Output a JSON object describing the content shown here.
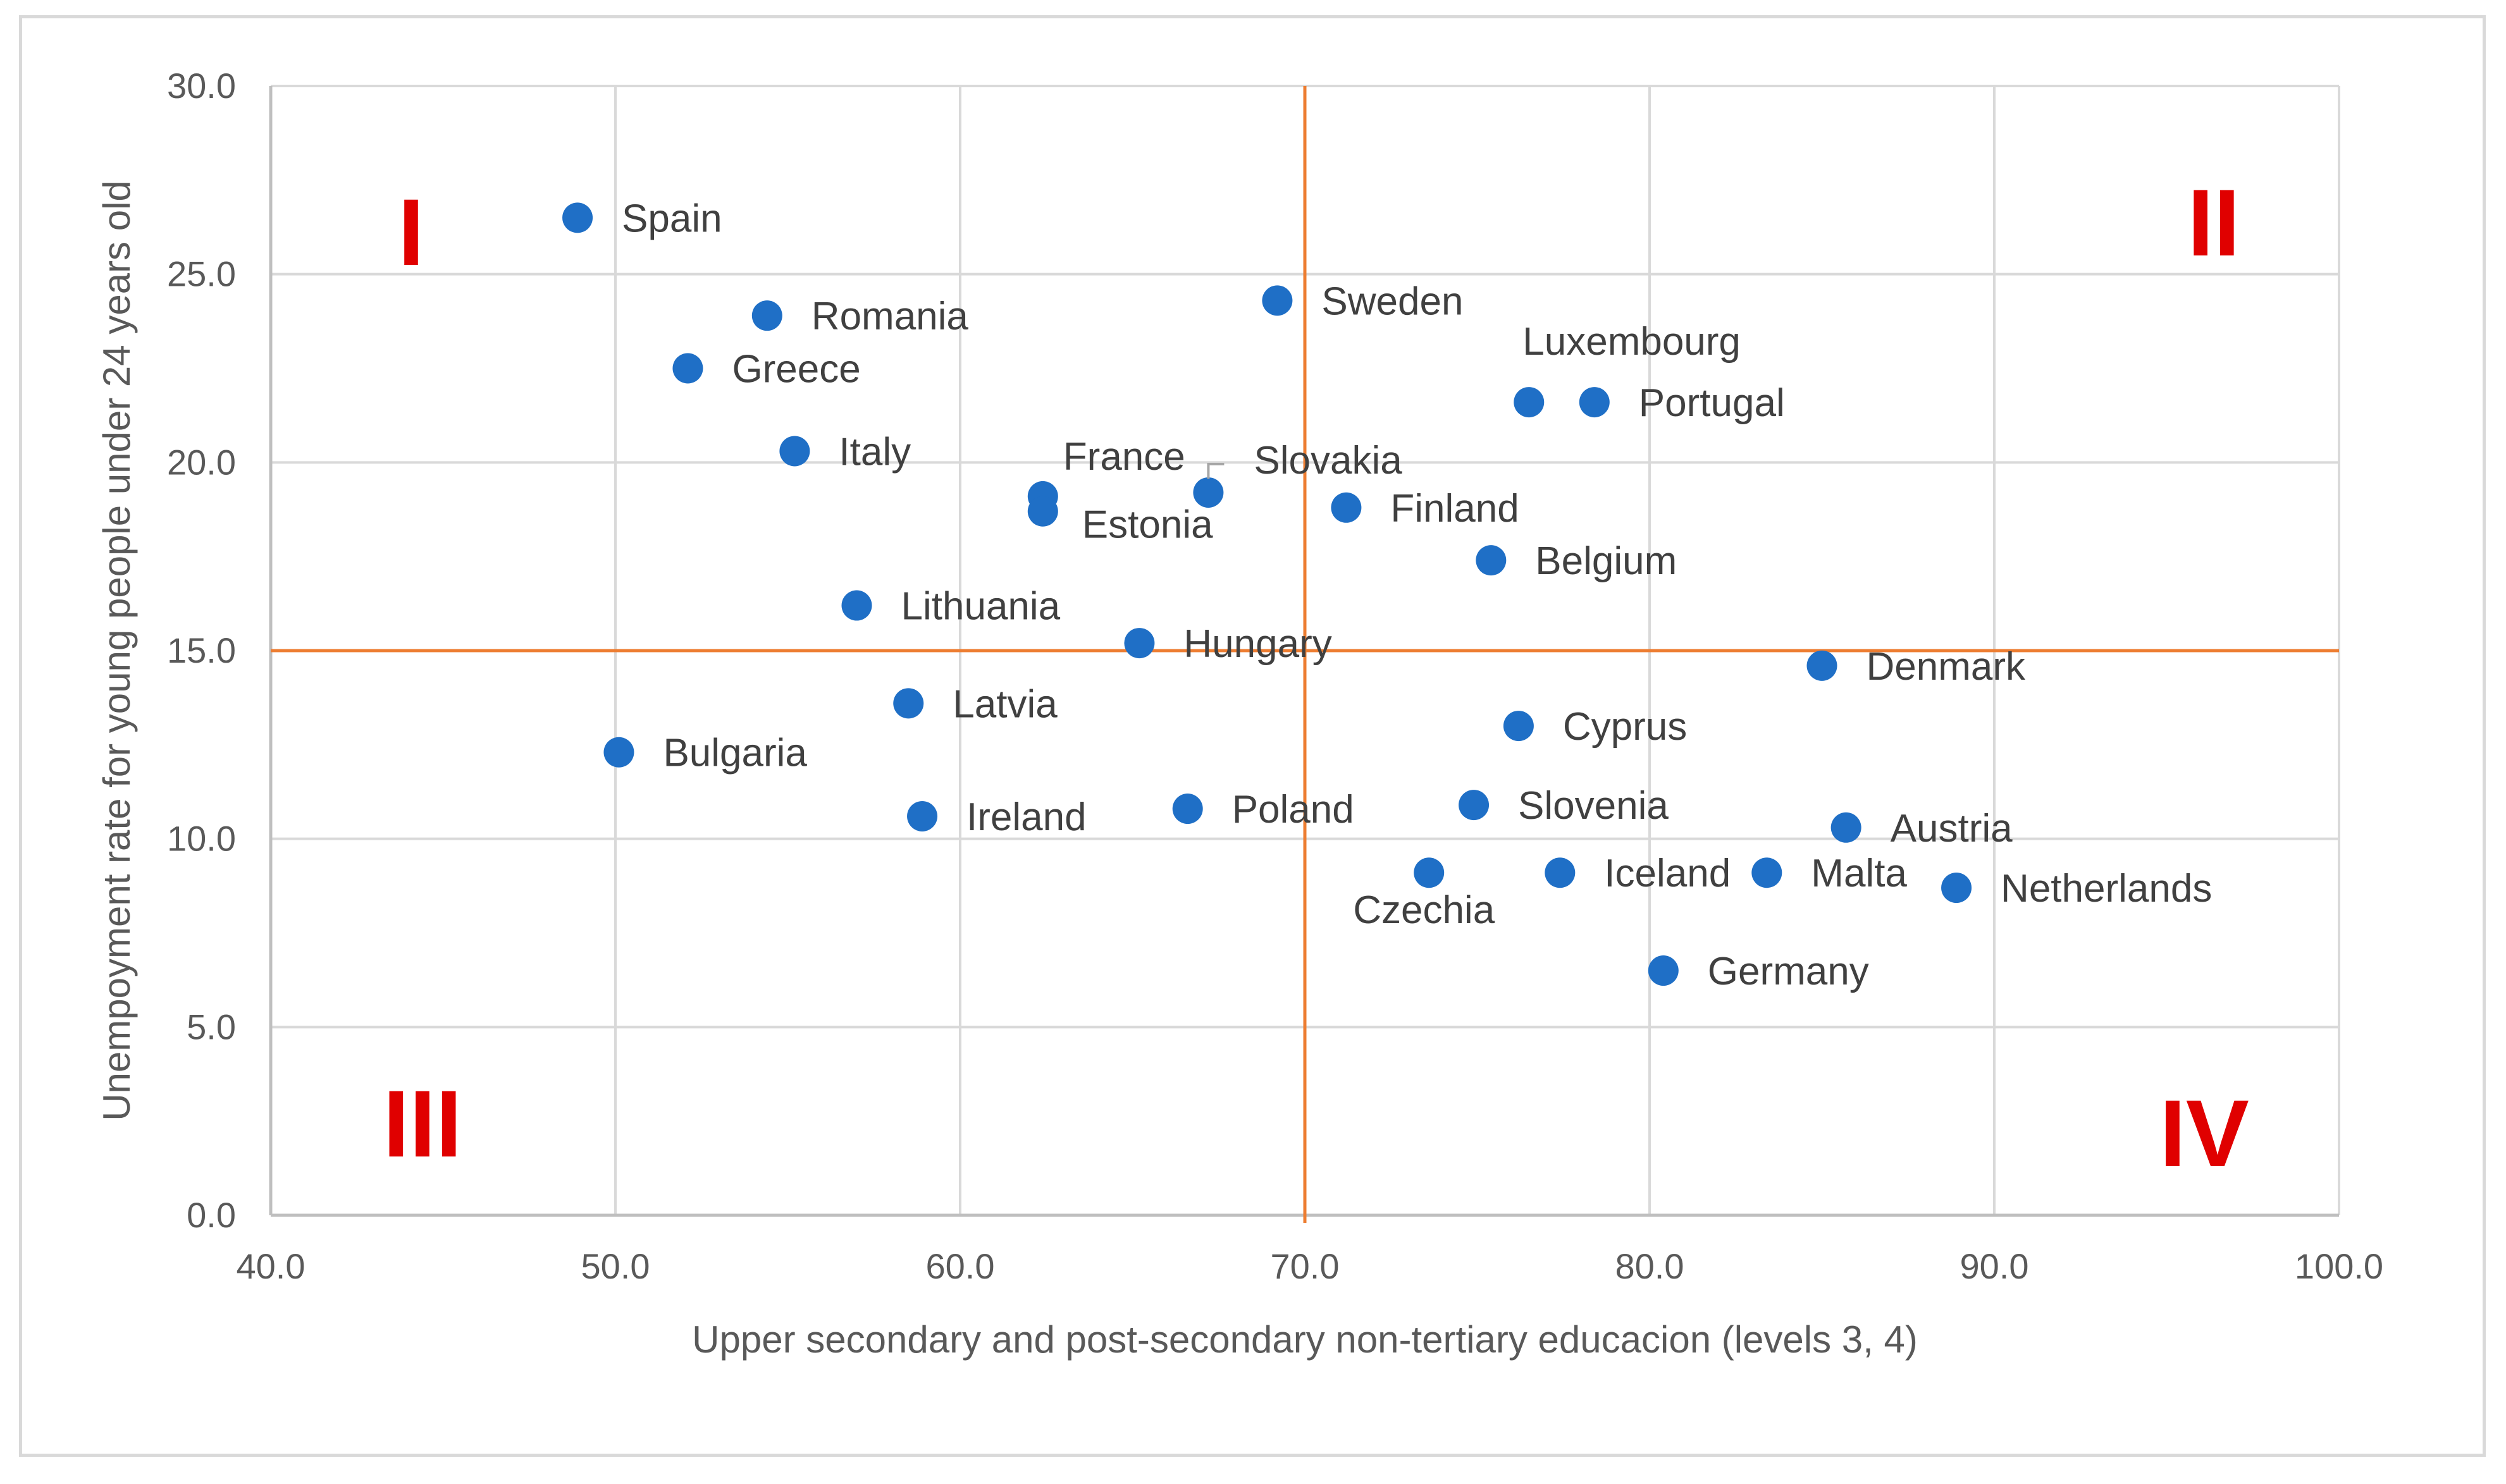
{
  "chart_data": {
    "type": "scatter",
    "xlabel": "Upper secondary and post-secondary non-tertiary educacion (levels 3, 4)",
    "ylabel": "Unempoyment rate for young people under 24 years old",
    "xlim": [
      40,
      100
    ],
    "ylim": [
      0,
      30
    ],
    "x_ticks": [
      "40.0",
      "50.0",
      "60.0",
      "70.0",
      "80.0",
      "90.0",
      "100.0"
    ],
    "y_ticks": [
      "0.0",
      "5.0",
      "10.0",
      "15.0",
      "20.0",
      "25.0",
      "30.0"
    ],
    "grid": true,
    "reference_lines": {
      "x": 70,
      "y": 15,
      "color": "#ed7d31"
    },
    "quadrant_labels": [
      {
        "text": "I",
        "position": "top-left"
      },
      {
        "text": "II",
        "position": "top-right"
      },
      {
        "text": "III",
        "position": "bottom-left"
      },
      {
        "text": "IV",
        "position": "bottom-right"
      }
    ],
    "point_color": "#1f6fc6",
    "points": [
      {
        "label": "Spain",
        "x": 48.9,
        "y": 26.5
      },
      {
        "label": "Romania",
        "x": 54.4,
        "y": 23.9
      },
      {
        "label": "Greece",
        "x": 52.1,
        "y": 22.5
      },
      {
        "label": "Italy",
        "x": 55.2,
        "y": 20.3
      },
      {
        "label": "France",
        "x": 62.4,
        "y": 19.1
      },
      {
        "label": "Estonia",
        "x": 62.4,
        "y": 18.7
      },
      {
        "label": "Slovakia",
        "x": 67.2,
        "y": 19.2
      },
      {
        "label": "Sweden",
        "x": 69.2,
        "y": 24.3
      },
      {
        "label": "Luxembourg",
        "x": 76.5,
        "y": 21.6
      },
      {
        "label": "Portugal",
        "x": 78.4,
        "y": 21.6
      },
      {
        "label": "Finland",
        "x": 71.2,
        "y": 18.8
      },
      {
        "label": "Belgium",
        "x": 75.4,
        "y": 17.4
      },
      {
        "label": "Lithuania",
        "x": 57.0,
        "y": 16.2
      },
      {
        "label": "Hungary",
        "x": 65.2,
        "y": 15.2
      },
      {
        "label": "Denmark",
        "x": 85.0,
        "y": 14.6
      },
      {
        "label": "Latvia",
        "x": 58.5,
        "y": 13.6
      },
      {
        "label": "Cyprus",
        "x": 76.2,
        "y": 13.0
      },
      {
        "label": "Bulgaria",
        "x": 50.1,
        "y": 12.3
      },
      {
        "label": "Ireland",
        "x": 58.9,
        "y": 10.6
      },
      {
        "label": "Poland",
        "x": 66.6,
        "y": 10.8
      },
      {
        "label": "Slovenia",
        "x": 74.9,
        "y": 10.9
      },
      {
        "label": "Austria",
        "x": 85.7,
        "y": 10.3
      },
      {
        "label": "Czechia",
        "x": 73.6,
        "y": 9.1
      },
      {
        "label": "Iceland",
        "x": 77.4,
        "y": 9.1
      },
      {
        "label": "Malta",
        "x": 83.4,
        "y": 9.1
      },
      {
        "label": "Netherlands",
        "x": 88.9,
        "y": 8.7
      },
      {
        "label": "Germany",
        "x": 80.4,
        "y": 6.5
      }
    ]
  }
}
